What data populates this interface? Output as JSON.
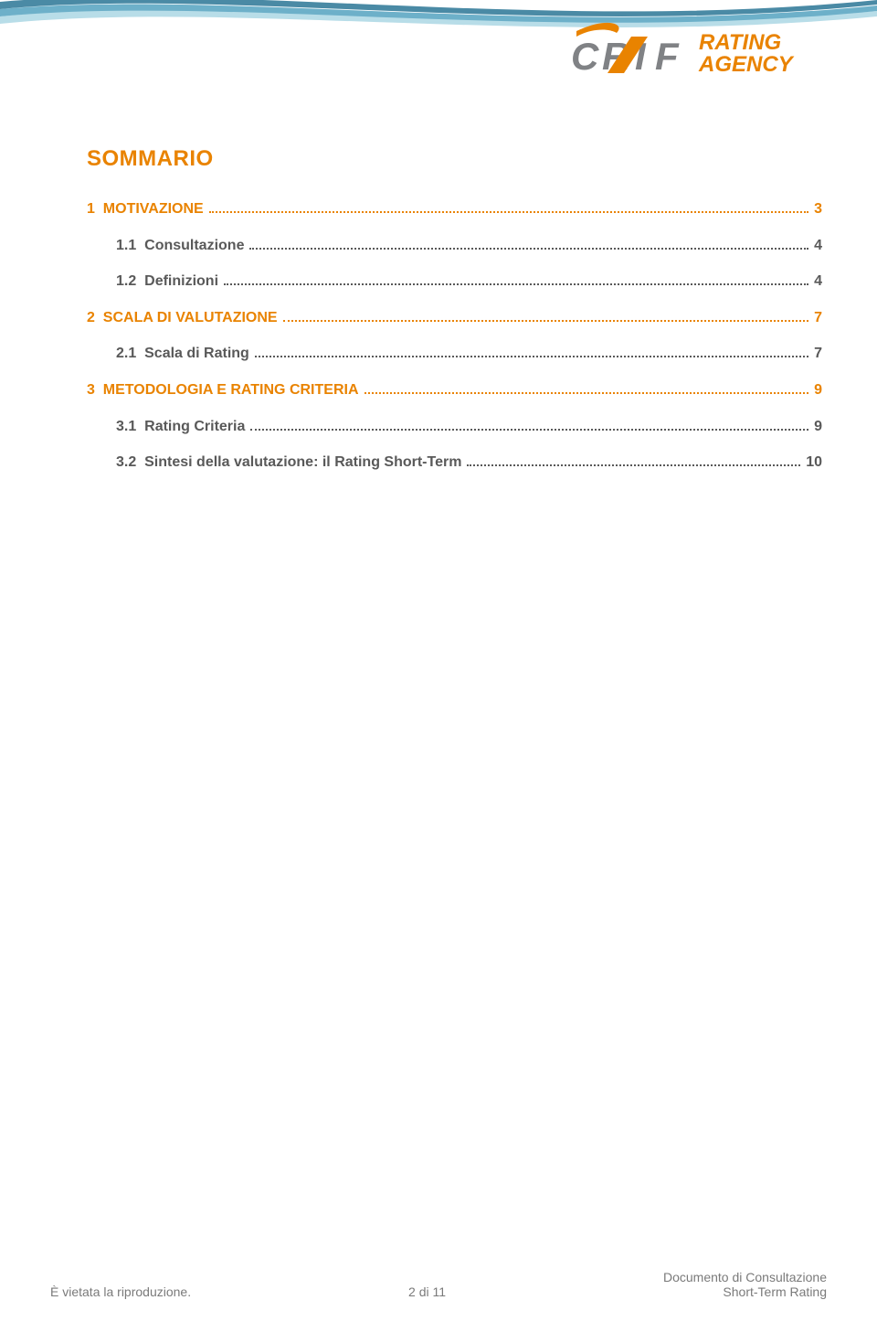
{
  "colors": {
    "orange": "#e98300",
    "grey_text": "#595959",
    "footer_grey": "#7a7a7a",
    "swoosh_dark": "#4a8aa5",
    "swoosh_mid": "#6db0c9",
    "swoosh_light": "#b8dde8",
    "logo_grey": "#808285",
    "background": "#ffffff"
  },
  "logo": {
    "brand_main": "CRIF",
    "brand_sub_line1": "RATING",
    "brand_sub_line2": "AGENCY"
  },
  "toc": {
    "title": "SOMMARIO",
    "entries": [
      {
        "num": "1",
        "text": "MOTIVAZIONE",
        "page": "3",
        "level": 0,
        "color": "orange"
      },
      {
        "num": "1.1",
        "text": "Consultazione",
        "page": "4",
        "level": 1,
        "color": "grey"
      },
      {
        "num": "1.2",
        "text": "Definizioni",
        "page": "4",
        "level": 1,
        "color": "grey"
      },
      {
        "num": "2",
        "text": "SCALA DI VALUTAZIONE",
        "page": "7",
        "level": 0,
        "color": "orange"
      },
      {
        "num": "2.1",
        "text": "Scala di Rating",
        "page": "7",
        "level": 1,
        "color": "grey"
      },
      {
        "num": "3",
        "text": "METODOLOGIA E RATING CRITERIA",
        "page": "9",
        "level": 0,
        "color": "orange"
      },
      {
        "num": "3.1",
        "text": "Rating Criteria",
        "page": "9",
        "level": 1,
        "color": "grey"
      },
      {
        "num": "3.2",
        "text": "Sintesi della valutazione: il Rating Short-Term",
        "page": "10",
        "level": 1,
        "color": "grey"
      }
    ]
  },
  "footer": {
    "left": "È vietata la riproduzione.",
    "center": "2 di 11",
    "right_line1": "Documento di Consultazione",
    "right_line2": "Short-Term Rating"
  }
}
